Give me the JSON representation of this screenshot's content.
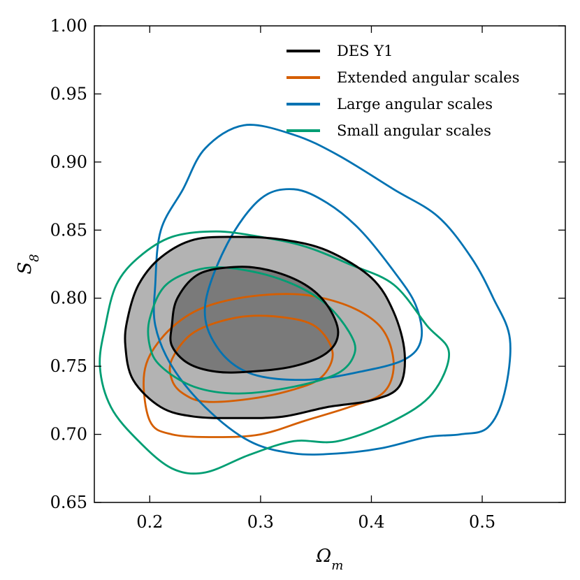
{
  "chart_data": {
    "type": "contour",
    "xlabel": "Ω",
    "xlabel_sub": "m",
    "ylabel": "S",
    "ylabel_sub": "8",
    "xlim": [
      0.15,
      0.575
    ],
    "ylim": [
      0.65,
      1.0
    ],
    "xticks": [
      0.2,
      0.3,
      0.4,
      0.5
    ],
    "xtick_labels": [
      "0.2",
      "0.3",
      "0.4",
      "0.5"
    ],
    "yticks": [
      0.65,
      0.7,
      0.75,
      0.8,
      0.85,
      0.9,
      0.95,
      1.0
    ],
    "ytick_labels": [
      "0.65",
      "0.70",
      "0.75",
      "0.80",
      "0.85",
      "0.90",
      "0.95",
      "1.00"
    ],
    "legend_position": "top-right",
    "series": [
      {
        "name": "DES Y1",
        "color": "#000000",
        "filled": true,
        "contours": [
          {
            "level": "outer",
            "fill": "#b3b3b3",
            "points": [
              [
                0.18,
                0.785
              ],
              [
                0.19,
                0.81
              ],
              [
                0.21,
                0.83
              ],
              [
                0.24,
                0.843
              ],
              [
                0.28,
                0.845
              ],
              [
                0.32,
                0.843
              ],
              [
                0.36,
                0.835
              ],
              [
                0.4,
                0.815
              ],
              [
                0.42,
                0.79
              ],
              [
                0.43,
                0.76
              ],
              [
                0.425,
                0.735
              ],
              [
                0.4,
                0.725
              ],
              [
                0.36,
                0.72
              ],
              [
                0.32,
                0.713
              ],
              [
                0.28,
                0.712
              ],
              [
                0.24,
                0.713
              ],
              [
                0.21,
                0.72
              ],
              [
                0.185,
                0.74
              ],
              [
                0.178,
                0.765
              ]
            ]
          },
          {
            "level": "inner",
            "fill": "#7a7a7a",
            "points": [
              [
                0.22,
                0.78
              ],
              [
                0.225,
                0.8
              ],
              [
                0.245,
                0.818
              ],
              [
                0.28,
                0.823
              ],
              [
                0.31,
                0.82
              ],
              [
                0.34,
                0.81
              ],
              [
                0.36,
                0.795
              ],
              [
                0.37,
                0.775
              ],
              [
                0.36,
                0.76
              ],
              [
                0.33,
                0.75
              ],
              [
                0.29,
                0.746
              ],
              [
                0.26,
                0.746
              ],
              [
                0.235,
                0.752
              ],
              [
                0.22,
                0.765
              ]
            ]
          }
        ]
      },
      {
        "name": "Extended angular scales",
        "color": "#d55e00",
        "filled": false,
        "contours": [
          {
            "level": "outer",
            "points": [
              [
                0.195,
                0.745
              ],
              [
                0.21,
                0.77
              ],
              [
                0.24,
                0.79
              ],
              [
                0.28,
                0.8
              ],
              [
                0.33,
                0.803
              ],
              [
                0.37,
                0.797
              ],
              [
                0.4,
                0.785
              ],
              [
                0.415,
                0.77
              ],
              [
                0.42,
                0.748
              ],
              [
                0.41,
                0.73
              ],
              [
                0.38,
                0.72
              ],
              [
                0.34,
                0.71
              ],
              [
                0.3,
                0.7
              ],
              [
                0.26,
                0.698
              ],
              [
                0.22,
                0.7
              ],
              [
                0.2,
                0.71
              ]
            ]
          },
          {
            "level": "inner",
            "points": [
              [
                0.22,
                0.755
              ],
              [
                0.24,
                0.775
              ],
              [
                0.28,
                0.786
              ],
              [
                0.32,
                0.786
              ],
              [
                0.35,
                0.779
              ],
              [
                0.365,
                0.76
              ],
              [
                0.355,
                0.742
              ],
              [
                0.33,
                0.733
              ],
              [
                0.29,
                0.726
              ],
              [
                0.25,
                0.724
              ],
              [
                0.23,
                0.73
              ],
              [
                0.22,
                0.74
              ]
            ]
          }
        ]
      },
      {
        "name": "Large angular scales",
        "color": "#0072b2",
        "filled": false,
        "contours": [
          {
            "level": "outer",
            "points": [
              [
                0.205,
                0.81
              ],
              [
                0.21,
                0.85
              ],
              [
                0.23,
                0.88
              ],
              [
                0.25,
                0.91
              ],
              [
                0.285,
                0.927
              ],
              [
                0.33,
                0.92
              ],
              [
                0.37,
                0.905
              ],
              [
                0.42,
                0.88
              ],
              [
                0.46,
                0.86
              ],
              [
                0.49,
                0.83
              ],
              [
                0.51,
                0.8
              ],
              [
                0.525,
                0.77
              ],
              [
                0.52,
                0.73
              ],
              [
                0.505,
                0.705
              ],
              [
                0.48,
                0.7
              ],
              [
                0.45,
                0.698
              ],
              [
                0.41,
                0.69
              ],
              [
                0.37,
                0.686
              ],
              [
                0.33,
                0.686
              ],
              [
                0.29,
                0.695
              ],
              [
                0.25,
                0.72
              ],
              [
                0.22,
                0.75
              ],
              [
                0.205,
                0.78
              ]
            ]
          },
          {
            "level": "inner",
            "points": [
              [
                0.25,
                0.795
              ],
              [
                0.27,
                0.84
              ],
              [
                0.3,
                0.873
              ],
              [
                0.33,
                0.88
              ],
              [
                0.36,
                0.87
              ],
              [
                0.39,
                0.85
              ],
              [
                0.42,
                0.82
              ],
              [
                0.44,
                0.795
              ],
              [
                0.445,
                0.77
              ],
              [
                0.43,
                0.755
              ],
              [
                0.39,
                0.746
              ],
              [
                0.34,
                0.74
              ],
              [
                0.29,
                0.745
              ],
              [
                0.26,
                0.765
              ]
            ]
          }
        ]
      },
      {
        "name": "Small angular scales",
        "color": "#009e73",
        "filled": false,
        "contours": [
          {
            "level": "outer",
            "points": [
              [
                0.16,
                0.78
              ],
              [
                0.17,
                0.81
              ],
              [
                0.19,
                0.83
              ],
              [
                0.22,
                0.845
              ],
              [
                0.26,
                0.849
              ],
              [
                0.3,
                0.845
              ],
              [
                0.34,
                0.838
              ],
              [
                0.38,
                0.825
              ],
              [
                0.42,
                0.81
              ],
              [
                0.45,
                0.78
              ],
              [
                0.47,
                0.76
              ],
              [
                0.455,
                0.73
              ],
              [
                0.42,
                0.71
              ],
              [
                0.37,
                0.695
              ],
              [
                0.33,
                0.695
              ],
              [
                0.29,
                0.685
              ],
              [
                0.25,
                0.672
              ],
              [
                0.22,
                0.675
              ],
              [
                0.19,
                0.695
              ],
              [
                0.165,
                0.72
              ],
              [
                0.155,
                0.75
              ]
            ]
          },
          {
            "level": "inner",
            "points": [
              [
                0.2,
                0.785
              ],
              [
                0.215,
                0.81
              ],
              [
                0.25,
                0.822
              ],
              [
                0.29,
                0.82
              ],
              [
                0.33,
                0.81
              ],
              [
                0.36,
                0.795
              ],
              [
                0.38,
                0.775
              ],
              [
                0.385,
                0.76
              ],
              [
                0.37,
                0.745
              ],
              [
                0.33,
                0.735
              ],
              [
                0.28,
                0.73
              ],
              [
                0.24,
                0.735
              ],
              [
                0.21,
                0.75
              ],
              [
                0.2,
                0.765
              ]
            ]
          }
        ]
      }
    ]
  }
}
